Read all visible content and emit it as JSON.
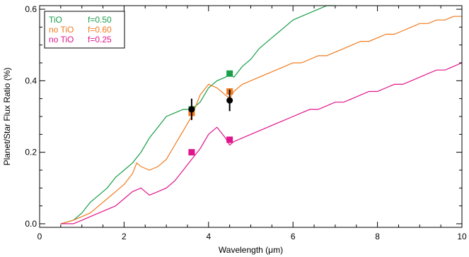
{
  "chart_data": {
    "type": "line",
    "xlabel": "Wavelength (μm)",
    "ylabel": "Planet/Star Flux Ratio (%)",
    "xlim": [
      0,
      10
    ],
    "ylim": [
      -0.01,
      0.61
    ],
    "x_ticks": [
      0,
      2,
      4,
      6,
      8,
      10
    ],
    "x_tick_labels": [
      "0",
      "2",
      "4",
      "6",
      "8",
      "10"
    ],
    "y_ticks": [
      0.0,
      0.2,
      0.4,
      0.6
    ],
    "y_tick_labels": [
      "0.0",
      "0.2",
      "0.4",
      "0.6"
    ],
    "legend_position": "top-left",
    "legend": [
      {
        "label": "TiO",
        "param": "f=0.50",
        "color": "#1a9e4a"
      },
      {
        "label": "no TiO",
        "param": "f=0.60",
        "color": "#f07a1e"
      },
      {
        "label": "no TiO",
        "param": "f=0.25",
        "color": "#e0148c"
      }
    ],
    "series": [
      {
        "color": "#1a9e4a",
        "x": [
          0.5,
          0.8,
          1.0,
          1.2,
          1.4,
          1.6,
          1.8,
          2.0,
          2.2,
          2.4,
          2.6,
          2.8,
          3.0,
          3.2,
          3.4,
          3.6,
          3.8,
          4.0,
          4.2,
          4.4,
          4.5,
          4.6,
          4.8,
          5.0,
          5.2,
          5.4,
          5.6,
          5.8,
          6.0,
          6.2,
          6.4,
          6.6,
          6.8,
          7.0
        ],
        "y": [
          0.0,
          0.01,
          0.03,
          0.06,
          0.08,
          0.1,
          0.13,
          0.15,
          0.17,
          0.2,
          0.24,
          0.27,
          0.3,
          0.31,
          0.32,
          0.32,
          0.34,
          0.38,
          0.4,
          0.41,
          0.42,
          0.41,
          0.44,
          0.46,
          0.49,
          0.51,
          0.53,
          0.55,
          0.57,
          0.58,
          0.59,
          0.6,
          0.61,
          0.61
        ]
      },
      {
        "color": "#f07a1e",
        "x": [
          0.5,
          0.8,
          1.0,
          1.2,
          1.4,
          1.6,
          1.8,
          2.0,
          2.2,
          2.3,
          2.4,
          2.6,
          2.8,
          3.0,
          3.2,
          3.4,
          3.6,
          3.8,
          4.0,
          4.2,
          4.4,
          4.5,
          4.6,
          4.8,
          5.0,
          5.2,
          5.4,
          5.6,
          5.8,
          6.0,
          6.2,
          6.4,
          6.6,
          6.8,
          7.0,
          7.2,
          7.4,
          7.6,
          7.8,
          8.0,
          8.2,
          8.4,
          8.6,
          8.8,
          9.0,
          9.2,
          9.4,
          9.6,
          9.8,
          10.0
        ],
        "y": [
          0.0,
          0.01,
          0.02,
          0.03,
          0.05,
          0.07,
          0.09,
          0.11,
          0.14,
          0.17,
          0.16,
          0.15,
          0.16,
          0.18,
          0.22,
          0.26,
          0.3,
          0.36,
          0.39,
          0.38,
          0.36,
          0.35,
          0.37,
          0.39,
          0.4,
          0.41,
          0.42,
          0.43,
          0.44,
          0.45,
          0.45,
          0.46,
          0.47,
          0.47,
          0.48,
          0.49,
          0.5,
          0.51,
          0.51,
          0.52,
          0.53,
          0.53,
          0.54,
          0.55,
          0.56,
          0.56,
          0.57,
          0.57,
          0.58,
          0.58
        ]
      },
      {
        "color": "#e0148c",
        "x": [
          0.5,
          0.8,
          1.0,
          1.2,
          1.4,
          1.6,
          1.8,
          2.0,
          2.2,
          2.4,
          2.6,
          2.8,
          3.0,
          3.2,
          3.4,
          3.6,
          3.8,
          4.0,
          4.2,
          4.4,
          4.5,
          4.6,
          4.8,
          5.0,
          5.2,
          5.4,
          5.6,
          5.8,
          6.0,
          6.2,
          6.4,
          6.6,
          6.8,
          7.0,
          7.2,
          7.4,
          7.6,
          7.8,
          8.0,
          8.2,
          8.4,
          8.6,
          8.8,
          9.0,
          9.2,
          9.4,
          9.6,
          9.8,
          10.0
        ],
        "y": [
          0.0,
          0.0,
          0.01,
          0.02,
          0.03,
          0.04,
          0.05,
          0.07,
          0.09,
          0.1,
          0.08,
          0.09,
          0.1,
          0.12,
          0.15,
          0.18,
          0.21,
          0.25,
          0.27,
          0.24,
          0.22,
          0.23,
          0.24,
          0.25,
          0.26,
          0.27,
          0.28,
          0.29,
          0.3,
          0.31,
          0.32,
          0.32,
          0.33,
          0.34,
          0.34,
          0.35,
          0.36,
          0.37,
          0.37,
          0.38,
          0.39,
          0.39,
          0.4,
          0.41,
          0.42,
          0.43,
          0.43,
          0.44,
          0.45
        ]
      }
    ],
    "band_points": [
      {
        "x": 3.6,
        "y": 0.32,
        "color": "#1a9e4a"
      },
      {
        "x": 4.5,
        "y": 0.42,
        "color": "#1a9e4a"
      },
      {
        "x": 3.6,
        "y": 0.31,
        "color": "#f07a1e"
      },
      {
        "x": 4.5,
        "y": 0.37,
        "color": "#f07a1e"
      },
      {
        "x": 3.6,
        "y": 0.2,
        "color": "#e0148c"
      },
      {
        "x": 4.5,
        "y": 0.235,
        "color": "#e0148c"
      }
    ],
    "observations": [
      {
        "x": 3.6,
        "y": 0.32,
        "yerr": 0.03,
        "color": "#000000"
      },
      {
        "x": 4.5,
        "y": 0.345,
        "yerr": 0.03,
        "color": "#000000"
      }
    ]
  }
}
